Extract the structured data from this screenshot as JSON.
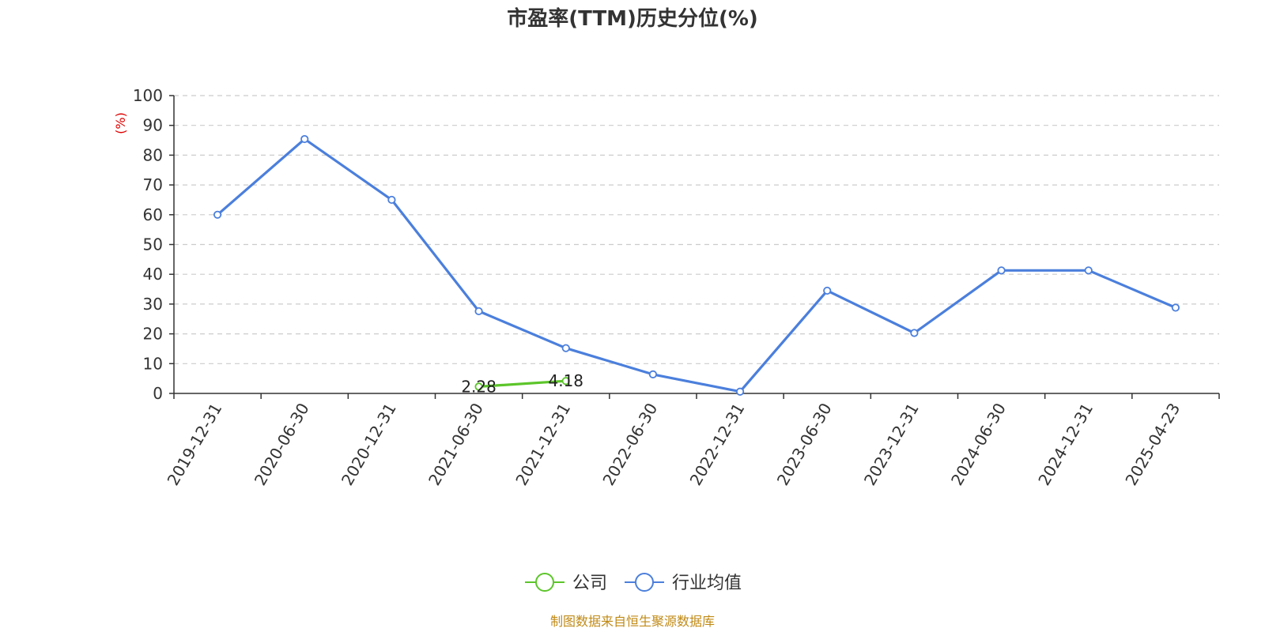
{
  "chart_data": {
    "type": "line",
    "title": "市盈率(TTM)历史分位(%)",
    "ylabel": "(%)",
    "ylim": [
      0,
      100
    ],
    "yticks": [
      0,
      10,
      20,
      30,
      40,
      50,
      60,
      70,
      80,
      90,
      100
    ],
    "grid": true,
    "legend_position": "bottom-center",
    "categories": [
      "2019-12-31",
      "2020-06-30",
      "2020-12-31",
      "2021-06-30",
      "2021-12-31",
      "2022-06-30",
      "2022-12-31",
      "2023-06-30",
      "2023-12-31",
      "2024-06-30",
      "2024-12-31",
      "2025-04-23"
    ],
    "series": [
      {
        "name": "公司",
        "color": "#5cc52a",
        "values": [
          null,
          null,
          null,
          2.28,
          4.18,
          null,
          null,
          null,
          null,
          null,
          null,
          null
        ],
        "data_labels": [
          "",
          "",
          "",
          "2.28",
          "4.18",
          "",
          "",
          "",
          "",
          "",
          "",
          ""
        ]
      },
      {
        "name": "行业均值",
        "color": "#4b7fdc",
        "values": [
          60,
          85.4,
          65,
          27.6,
          15.2,
          6.4,
          0.6,
          34.5,
          20.3,
          41.3,
          41.3,
          28.8
        ]
      }
    ]
  },
  "source": "制图数据来自恒生聚源数据库",
  "colors": {
    "axis": "#333333",
    "grid": "#cccccc",
    "ylabel": "#e00000",
    "source": "#c08a16"
  }
}
